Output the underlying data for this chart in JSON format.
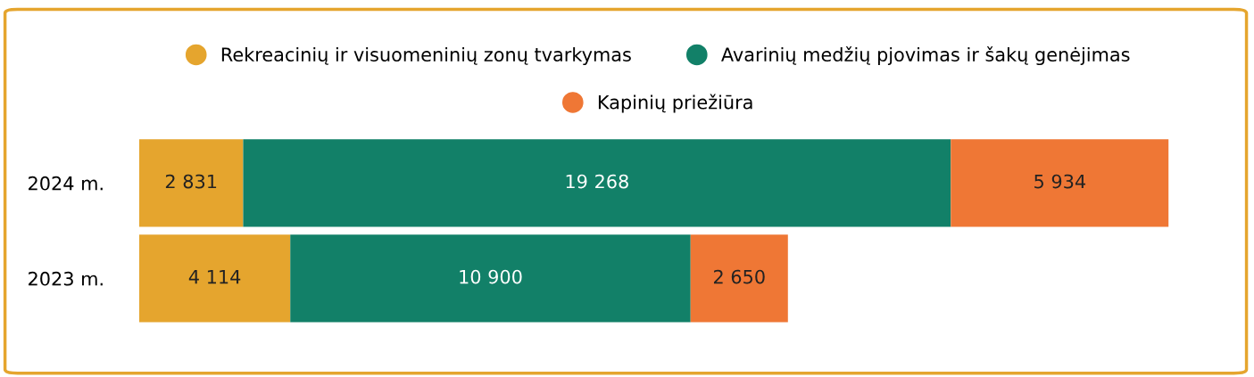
{
  "chart_data": {
    "type": "bar",
    "orientation": "horizontal",
    "stacked": true,
    "legend": "top",
    "marker": "circle",
    "data_labels": true,
    "categories": [
      "2024 m.",
      "2023 m."
    ],
    "series": [
      {
        "name": "Rekreacinių ir visuomeninių zonų tvarkymas",
        "color": "#e5a52e",
        "values": [
          2831,
          4114
        ]
      },
      {
        "name": "Avarinių medžių pjovimas ir šakų genėjimas",
        "color": "#128068",
        "values": [
          19268,
          10900
        ]
      },
      {
        "name": "Kapinių priežiūra",
        "color": "#ef7735",
        "values": [
          5934,
          2650
        ]
      }
    ]
  }
}
